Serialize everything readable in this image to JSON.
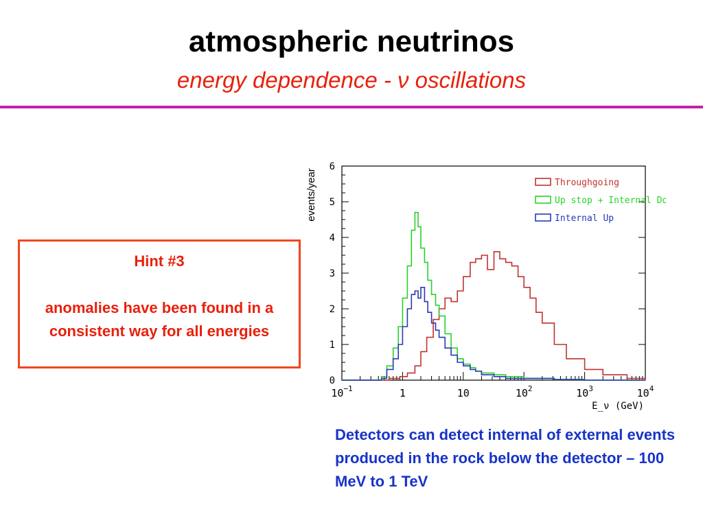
{
  "slide": {
    "title": "atmospheric neutrinos",
    "subtitle": "energy dependence -  ν oscillations"
  },
  "hint": {
    "heading": "Hint #3",
    "body": "anomalies have been found in a consistent way for all energies"
  },
  "caption": "Detectors can detect internal of external events produced in the rock below the detector – 100 MeV to 1 TeV",
  "colors": {
    "title": "#000000",
    "subtitle": "#e8200c",
    "rule": "#c51fa8",
    "hint_border": "#f0461e",
    "hint_text": "#e8200c",
    "caption": "#1733c8"
  },
  "chart_data": {
    "type": "line",
    "style": "step histogram",
    "title": "",
    "xlabel": "E_ν (GeV)",
    "ylabel": "events/year",
    "xscale": "log",
    "xlim": [
      0.1,
      10000
    ],
    "ylim": [
      0,
      6
    ],
    "x_ticks": [
      {
        "value": 0.1,
        "base": "10",
        "exp": "−1"
      },
      {
        "value": 1,
        "base": "1",
        "exp": ""
      },
      {
        "value": 10,
        "base": "10",
        "exp": ""
      },
      {
        "value": 100,
        "base": "10",
        "exp": "2"
      },
      {
        "value": 1000,
        "base": "10",
        "exp": "3"
      },
      {
        "value": 10000,
        "base": "10",
        "exp": "4"
      }
    ],
    "y_ticks": [
      0,
      1,
      2,
      3,
      4,
      5,
      6
    ],
    "legend_position": "top-right",
    "series": [
      {
        "name": "Throughgoing",
        "color": "#c0322f",
        "x": [
          0.1,
          0.3,
          0.6,
          0.9,
          1.2,
          1.6,
          2.0,
          2.5,
          3.2,
          4.0,
          5.0,
          6.3,
          8.0,
          10,
          13,
          16,
          20,
          25,
          32,
          40,
          50,
          63,
          80,
          100,
          126,
          158,
          200,
          316,
          500,
          1000,
          2000,
          5000,
          10000
        ],
        "y": [
          0,
          0,
          0.05,
          0.1,
          0.2,
          0.4,
          0.8,
          1.2,
          1.7,
          2.0,
          2.3,
          2.2,
          2.5,
          2.9,
          3.3,
          3.4,
          3.5,
          3.1,
          3.6,
          3.4,
          3.3,
          3.2,
          2.9,
          2.6,
          2.3,
          1.9,
          1.6,
          1.0,
          0.6,
          0.3,
          0.15,
          0.05,
          0
        ]
      },
      {
        "name": "Up stop + Internal Down",
        "color": "#28d22a",
        "x": [
          0.1,
          0.3,
          0.45,
          0.55,
          0.7,
          0.85,
          1.0,
          1.2,
          1.4,
          1.6,
          1.8,
          2.0,
          2.3,
          2.6,
          3.0,
          3.5,
          4.0,
          5.0,
          6.3,
          8.0,
          10,
          13,
          16,
          20,
          32,
          50,
          100,
          316,
          1000,
          10000
        ],
        "y": [
          0,
          0,
          0.1,
          0.4,
          0.9,
          1.5,
          2.3,
          3.2,
          4.2,
          4.7,
          4.3,
          3.7,
          3.3,
          2.8,
          2.4,
          2.1,
          1.8,
          1.3,
          0.9,
          0.6,
          0.45,
          0.35,
          0.25,
          0.2,
          0.15,
          0.1,
          0.05,
          0.02,
          0,
          0
        ]
      },
      {
        "name": "Internal Up",
        "color": "#2838b4",
        "x": [
          0.1,
          0.3,
          0.45,
          0.55,
          0.7,
          0.85,
          1.0,
          1.2,
          1.4,
          1.6,
          1.8,
          2.0,
          2.3,
          2.6,
          3.0,
          3.5,
          4.0,
          5.0,
          6.3,
          8.0,
          10,
          13,
          16,
          20,
          32,
          50,
          100,
          316,
          1000,
          10000
        ],
        "y": [
          0,
          0,
          0.05,
          0.3,
          0.6,
          1.0,
          1.5,
          2.0,
          2.4,
          2.5,
          2.3,
          2.6,
          2.2,
          1.9,
          1.6,
          1.4,
          1.2,
          0.9,
          0.7,
          0.5,
          0.4,
          0.3,
          0.25,
          0.15,
          0.1,
          0.05,
          0.05,
          0.02,
          0,
          0
        ]
      }
    ]
  }
}
